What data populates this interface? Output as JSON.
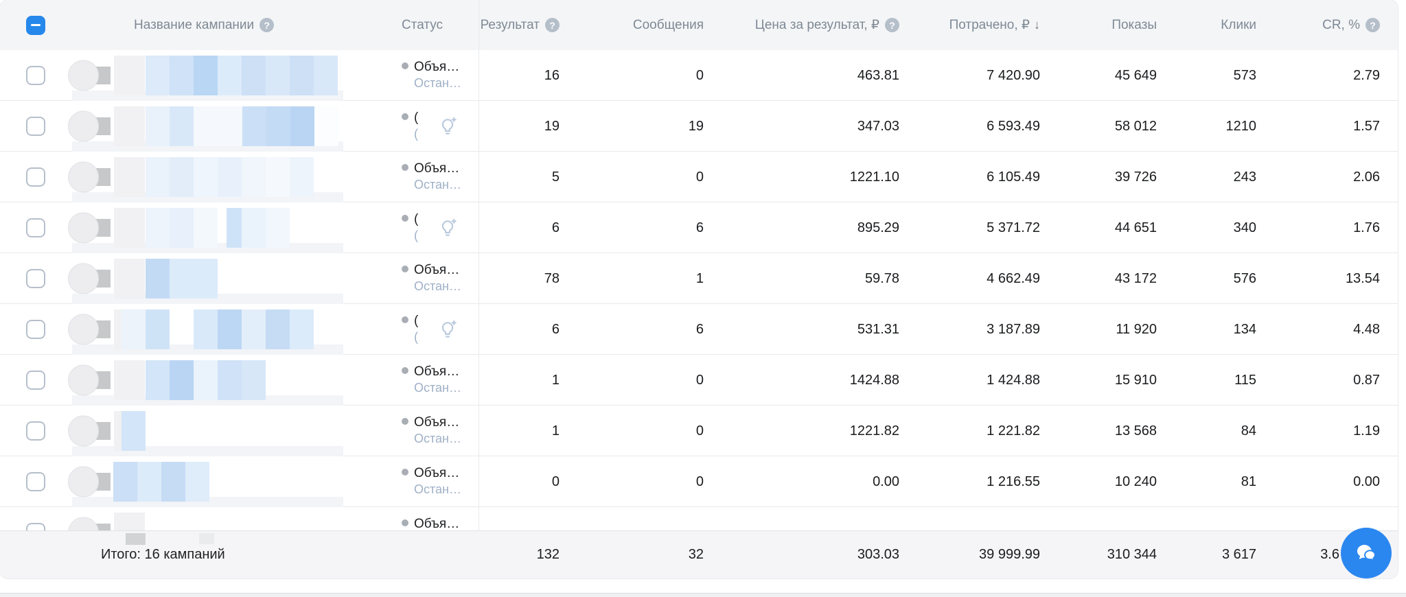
{
  "colors": {
    "accent": "#2688eb",
    "fab": "#2b87f0",
    "header_bg": "#f4f5f7",
    "header_text": "#7e8994",
    "footer_bg": "#f5f5f7",
    "row_border": "#e8e9eb",
    "status_secondary": "#9fb0c6",
    "status_dot": "#a9aeb5",
    "help_icon_bg": "#b5bfca",
    "bulb_icon": "#b9c9dd",
    "blur_blue_strong": "#b9d6f4",
    "blur_blue_light": "#dcebfa"
  },
  "header": {
    "help_glyph": "?",
    "name": {
      "label": "Название кампании",
      "has_help": true
    },
    "status": {
      "label": "Статус"
    },
    "result": {
      "label": "Результат",
      "has_help": true
    },
    "messages": {
      "label": "Сообщения"
    },
    "cost_per_result": {
      "label": "Цена за результат, ₽",
      "has_help": true
    },
    "spent": {
      "label": "Потрачено, ₽",
      "sort": "desc",
      "sort_icon": "↓"
    },
    "impressions": {
      "label": "Показы"
    },
    "clicks": {
      "label": "Клики"
    },
    "cr": {
      "label": "CR, %",
      "has_help": true
    }
  },
  "rows": [
    {
      "status": [
        "Объя…",
        "Остан…"
      ],
      "bulb": false,
      "result": "16",
      "messages": "0",
      "cpr": "463.81",
      "spent": "7 420.90",
      "impressions": "45 649",
      "clicks": "573",
      "cr": "2.79",
      "blur": [
        [
          212,
          35,
          "#dceafa"
        ],
        [
          247,
          35,
          "#cfe2f7"
        ],
        [
          282,
          35,
          "#b9d6f4"
        ],
        [
          317,
          35,
          "#dcebfa"
        ],
        [
          352,
          35,
          "#cde0f6"
        ],
        [
          387,
          35,
          "#d9e8f9"
        ],
        [
          422,
          35,
          "#cde0f6"
        ],
        [
          457,
          35,
          "#d9e8f9"
        ]
      ]
    },
    {
      "status": [
        "(",
        "("
      ],
      "bulb": true,
      "result": "19",
      "messages": "19",
      "cpr": "347.03",
      "spent": "6 593.49",
      "impressions": "58 012",
      "clicks": "1210",
      "cr": "1.57",
      "blur": [
        [
          212,
          35,
          "#e9f1fb"
        ],
        [
          247,
          35,
          "#d8e8f9"
        ],
        [
          282,
          71,
          "#f5f9fd"
        ],
        [
          353,
          35,
          "#cbdff7"
        ],
        [
          388,
          35,
          "#c3dbf5"
        ],
        [
          423,
          35,
          "#bad5f3"
        ],
        [
          458,
          35,
          "#fbfdfe"
        ]
      ]
    },
    {
      "status": [
        "Объя…",
        "Остан…"
      ],
      "bulb": false,
      "result": "5",
      "messages": "0",
      "cpr": "1221.10",
      "spent": "6 105.49",
      "impressions": "39 726",
      "clicks": "243",
      "cr": "2.06",
      "blur": [
        [
          212,
          35,
          "#eaf2fb"
        ],
        [
          247,
          35,
          "#e3edfa"
        ],
        [
          282,
          35,
          "#eff5fc"
        ],
        [
          317,
          35,
          "#e8f1fb"
        ],
        [
          352,
          35,
          "#f0f6fc"
        ],
        [
          387,
          35,
          "#f5f9fd"
        ],
        [
          422,
          35,
          "#eef4fb"
        ]
      ]
    },
    {
      "status": [
        "(",
        "("
      ],
      "bulb": true,
      "result": "6",
      "messages": "6",
      "cpr": "895.29",
      "spent": "5 371.72",
      "impressions": "44 651",
      "clicks": "340",
      "cr": "1.76",
      "blur": [
        [
          212,
          35,
          "#eef4fc"
        ],
        [
          247,
          35,
          "#e7f0fb"
        ],
        [
          282,
          35,
          "#f3f8fd"
        ],
        [
          330,
          22,
          "#cfe3f8"
        ],
        [
          352,
          35,
          "#eaf2fb"
        ],
        [
          387,
          35,
          "#f2f7fd"
        ]
      ]
    },
    {
      "status": [
        "Объя…",
        "Остан…"
      ],
      "bulb": false,
      "result": "78",
      "messages": "1",
      "cpr": "59.78",
      "spent": "4 662.49",
      "impressions": "43 172",
      "clicks": "576",
      "cr": "13.54",
      "blur": [
        [
          212,
          35,
          "#c3daf5"
        ],
        [
          247,
          35,
          "#dcebfa"
        ],
        [
          282,
          35,
          "#dcebfa"
        ]
      ]
    },
    {
      "status": [
        "(",
        "("
      ],
      "bulb": true,
      "result": "6",
      "messages": "6",
      "cpr": "531.31",
      "spent": "3 187.89",
      "impressions": "11 920",
      "clicks": "134",
      "cr": "4.48",
      "blur": [
        [
          177,
          35,
          "#ecf3fb"
        ],
        [
          212,
          35,
          "#cfe3f7"
        ],
        [
          282,
          35,
          "#d9e9f9"
        ],
        [
          317,
          35,
          "#bcd7f3"
        ],
        [
          352,
          35,
          "#e2eefa"
        ],
        [
          387,
          35,
          "#c6dcf5"
        ],
        [
          422,
          35,
          "#dcebfa"
        ]
      ]
    },
    {
      "status": [
        "Объя…",
        "Остан…"
      ],
      "bulb": false,
      "result": "1",
      "messages": "0",
      "cpr": "1424.88",
      "spent": "1 424.88",
      "impressions": "15 910",
      "clicks": "115",
      "cr": "0.87",
      "blur": [
        [
          212,
          35,
          "#d3e5f8"
        ],
        [
          247,
          35,
          "#b9d5f3"
        ],
        [
          282,
          35,
          "#eaf2fb"
        ],
        [
          317,
          35,
          "#cfe2f7"
        ],
        [
          352,
          35,
          "#d7e7f8"
        ]
      ]
    },
    {
      "status": [
        "Объя…",
        "Остан…"
      ],
      "bulb": false,
      "result": "1",
      "messages": "0",
      "cpr": "1221.82",
      "spent": "1 221.82",
      "impressions": "13 568",
      "clicks": "84",
      "cr": "1.19",
      "blur": [
        [
          177,
          35,
          "#d3e5f8"
        ]
      ]
    },
    {
      "status": [
        "Объя…",
        "Остан…"
      ],
      "bulb": false,
      "result": "0",
      "messages": "0",
      "cpr": "0.00",
      "spent": "1 216.55",
      "impressions": "10 240",
      "clicks": "81",
      "cr": "0.00",
      "blur": [
        [
          165,
          35,
          "#cbdff6"
        ],
        [
          200,
          35,
          "#dcebfa"
        ],
        [
          235,
          35,
          "#c6dcf5"
        ],
        [
          270,
          35,
          "#dfecfa"
        ]
      ]
    }
  ],
  "partial_row": {
    "status": [
      "Объя…",
      ""
    ],
    "bulb": false,
    "result": "",
    "messages": "",
    "cpr": "",
    "spent": "",
    "impressions": "",
    "clicks": "",
    "cr": "",
    "blur": []
  },
  "footer": {
    "label": "Итого: 16 кампаний",
    "result": "132",
    "messages": "32",
    "cpr": "303.03",
    "spent": "39 999.99",
    "impressions": "310 344",
    "clicks": "3 617",
    "cr": "3.6"
  },
  "fab": {
    "icon": "chat-bubbles"
  }
}
